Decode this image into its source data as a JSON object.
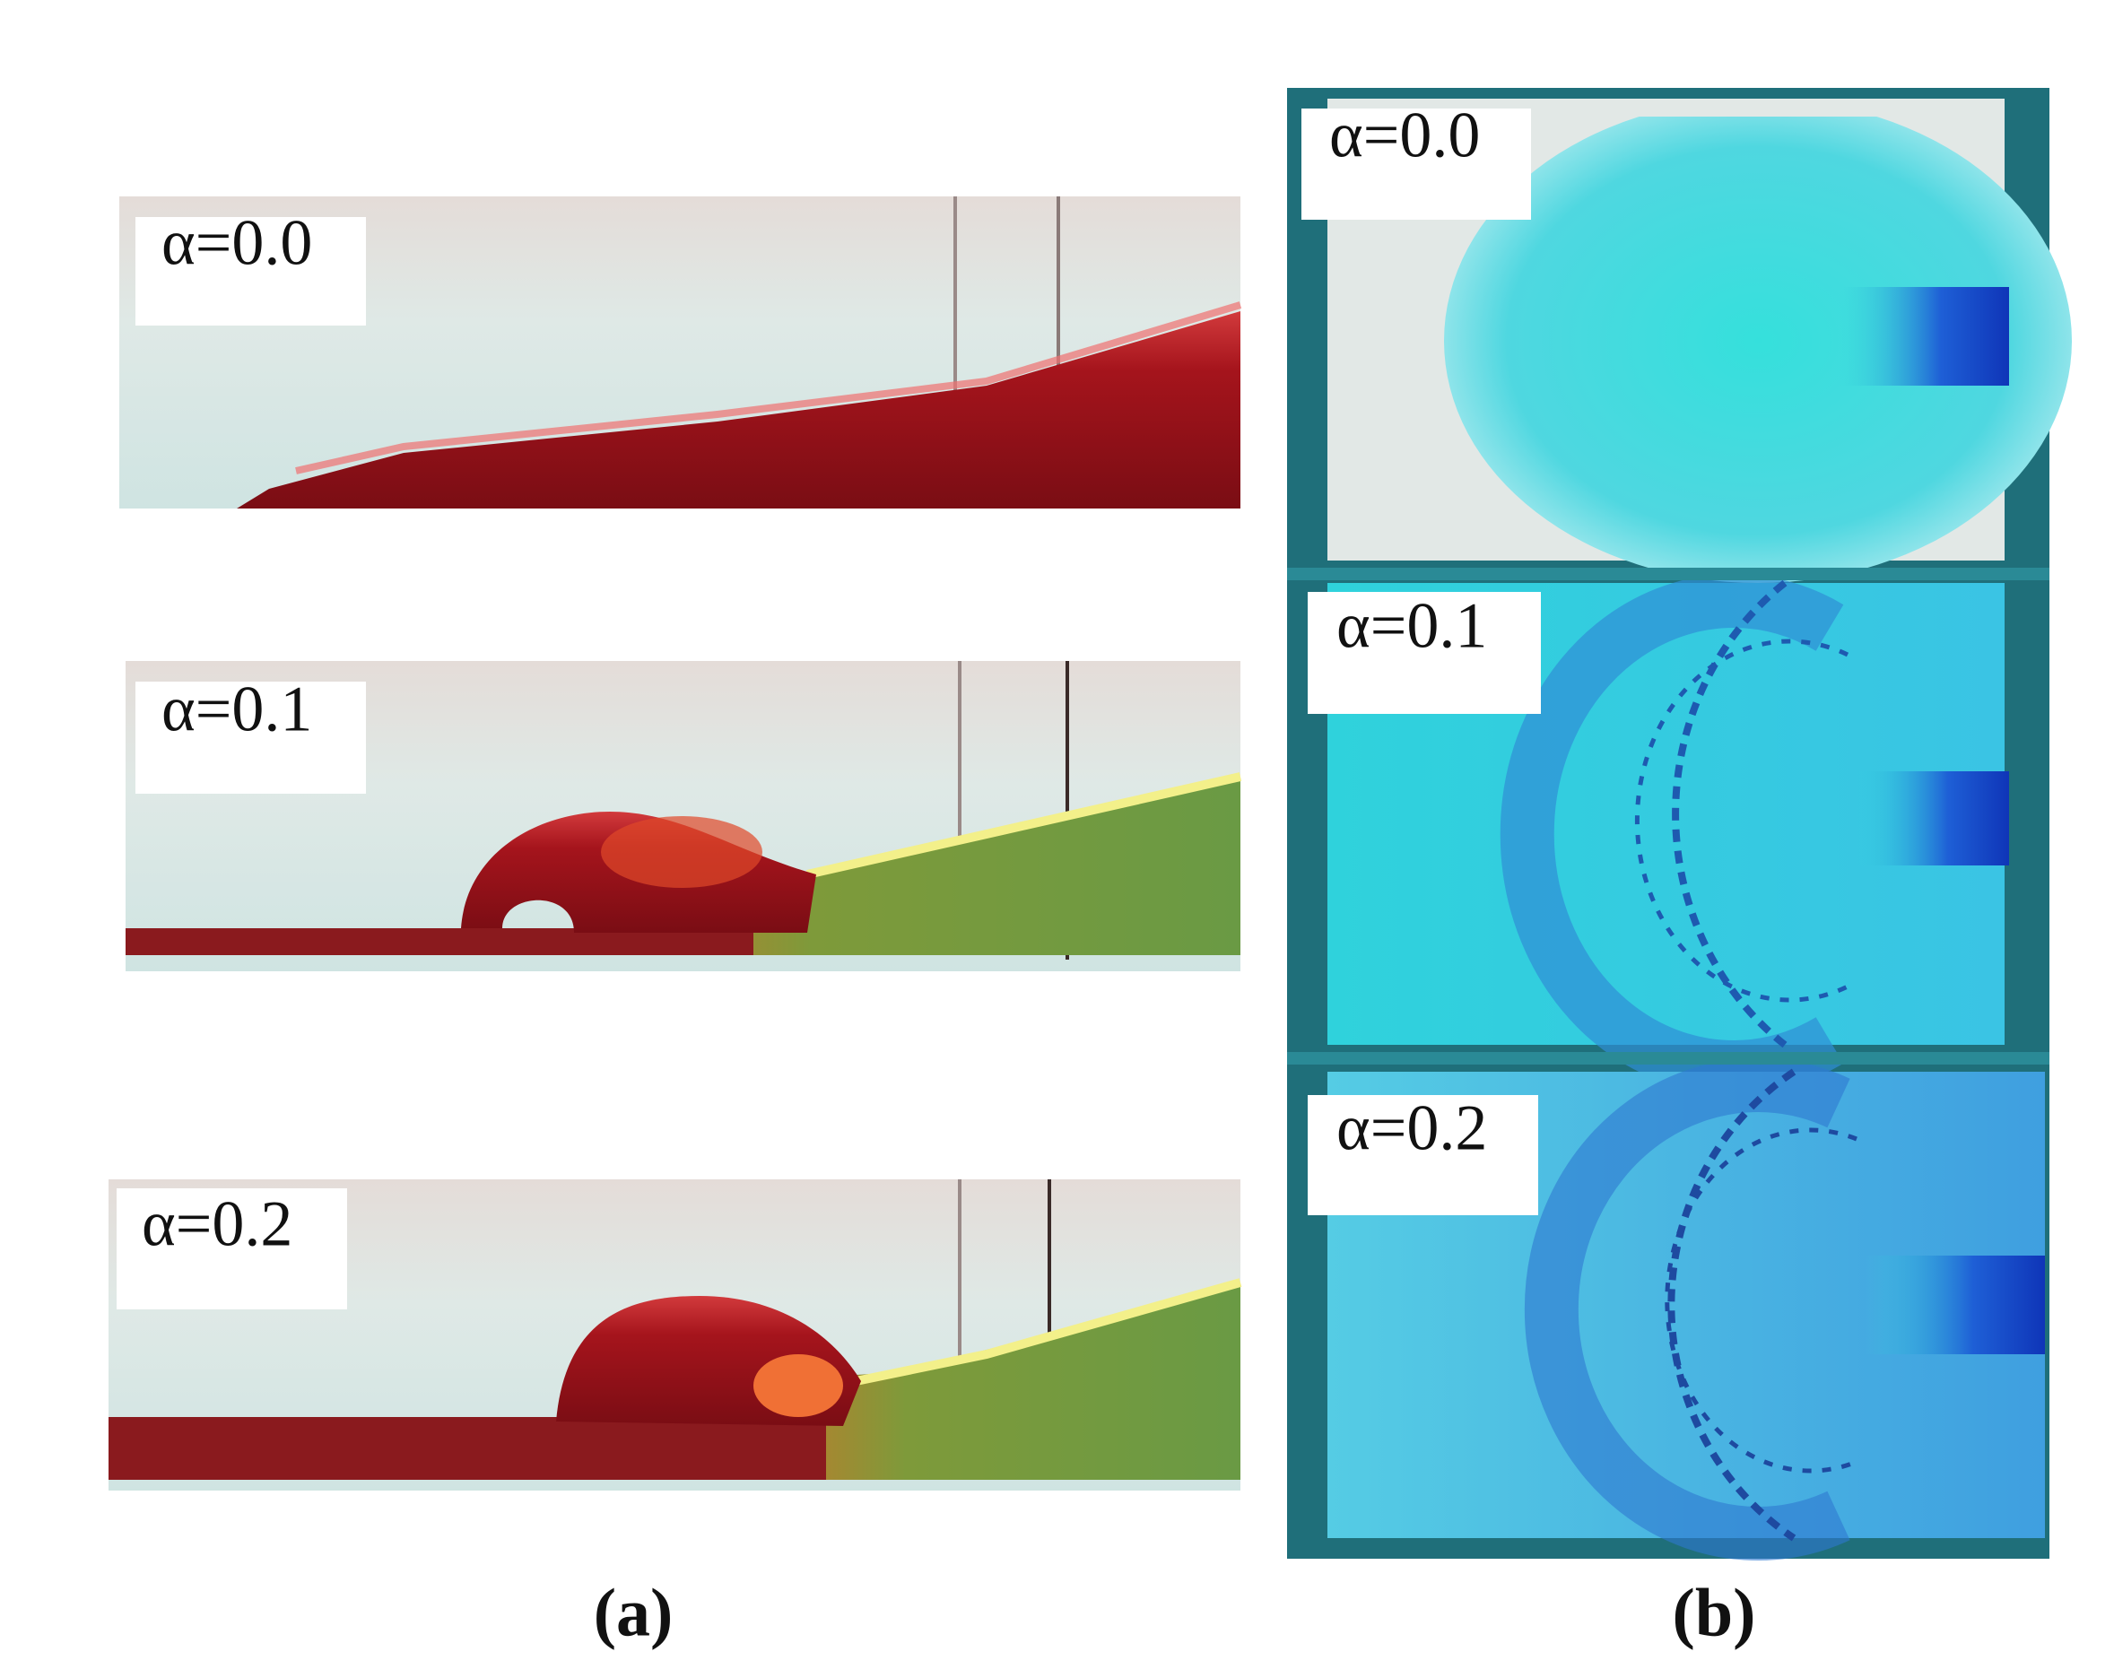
{
  "panel_a": {
    "caption": "(a)",
    "labels": [
      "α=0.0",
      "α=0.1",
      "α=0.2"
    ]
  },
  "panel_b": {
    "caption": "(b)",
    "labels": [
      "α=0.0",
      "α=0.1",
      "α=0.2"
    ]
  }
}
